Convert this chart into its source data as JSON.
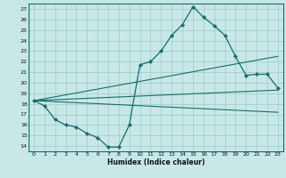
{
  "title": "",
  "xlabel": "Humidex (Indice chaleur)",
  "ylabel": "",
  "xlim": [
    -0.5,
    23.5
  ],
  "ylim": [
    13.5,
    27.5
  ],
  "yticks": [
    14,
    15,
    16,
    17,
    18,
    19,
    20,
    21,
    22,
    23,
    24,
    25,
    26,
    27
  ],
  "xticks": [
    0,
    1,
    2,
    3,
    4,
    5,
    6,
    7,
    8,
    9,
    10,
    11,
    12,
    13,
    14,
    15,
    16,
    17,
    18,
    19,
    20,
    21,
    22,
    23
  ],
  "bg_color": "#c8e8e8",
  "grid_color": "#a0c8c8",
  "line_color": "#1a6b6b",
  "spine_color": "#1a6b6b",
  "main_series_x": [
    0,
    1,
    2,
    3,
    4,
    5,
    6,
    7,
    8,
    9,
    10,
    11,
    12,
    13,
    14,
    15,
    16,
    17,
    18,
    19,
    20,
    21,
    22,
    23
  ],
  "main_series_y": [
    18.3,
    17.8,
    16.5,
    16.0,
    15.8,
    15.2,
    14.8,
    13.9,
    13.9,
    16.0,
    21.7,
    22.0,
    23.0,
    24.5,
    25.5,
    27.2,
    26.2,
    25.4,
    24.5,
    22.5,
    20.7,
    20.8,
    20.8,
    19.5
  ],
  "ref_lines": [
    {
      "x": [
        0,
        23
      ],
      "y": [
        18.3,
        19.3
      ]
    },
    {
      "x": [
        0,
        23
      ],
      "y": [
        18.3,
        17.2
      ]
    },
    {
      "x": [
        0,
        23
      ],
      "y": [
        18.3,
        22.5
      ]
    }
  ]
}
